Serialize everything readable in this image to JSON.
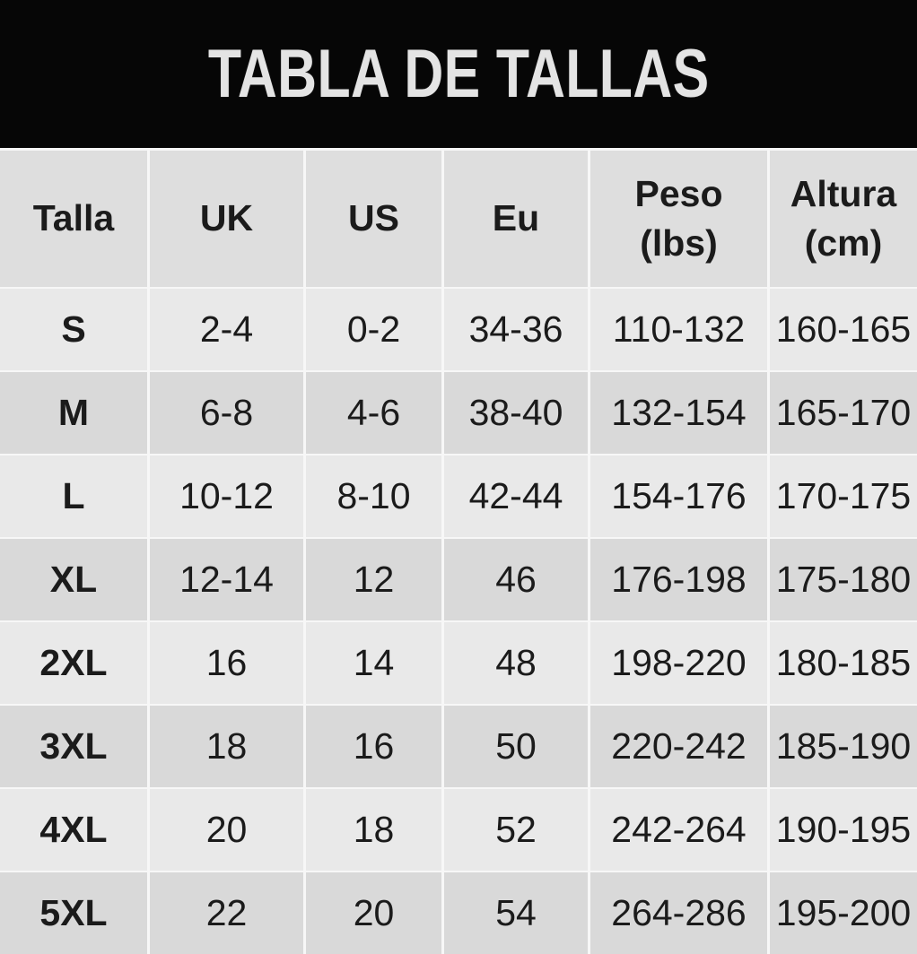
{
  "banner": {
    "title": "TABLA DE TALLAS"
  },
  "colors": {
    "banner-bg": "#060606",
    "banner-text": "#e4e4e4",
    "header-bg": "#dedede",
    "row-light": "#e9e9e9",
    "row-dark": "#d9d9d9",
    "separator": "#f7f7f7",
    "text": "#1b1b1b"
  },
  "table": {
    "headers": [
      [
        "Talla"
      ],
      [
        "UK"
      ],
      [
        "US"
      ],
      [
        "Eu"
      ],
      [
        "Peso",
        "(lbs)"
      ],
      [
        "Altura",
        "(cm)"
      ]
    ],
    "rows": [
      [
        "S",
        "2-4",
        "0-2",
        "34-36",
        "110-132",
        "160-165"
      ],
      [
        "M",
        "6-8",
        "4-6",
        "38-40",
        "132-154",
        "165-170"
      ],
      [
        "L",
        "10-12",
        "8-10",
        "42-44",
        "154-176",
        "170-175"
      ],
      [
        "XL",
        "12-14",
        "12",
        "46",
        "176-198",
        "175-180"
      ],
      [
        "2XL",
        "16",
        "14",
        "48",
        "198-220",
        "180-185"
      ],
      [
        "3XL",
        "18",
        "16",
        "50",
        "220-242",
        "185-190"
      ],
      [
        "4XL",
        "20",
        "18",
        "52",
        "242-264",
        "190-195"
      ],
      [
        "5XL",
        "22",
        "20",
        "54",
        "264-286",
        "195-200"
      ]
    ]
  }
}
